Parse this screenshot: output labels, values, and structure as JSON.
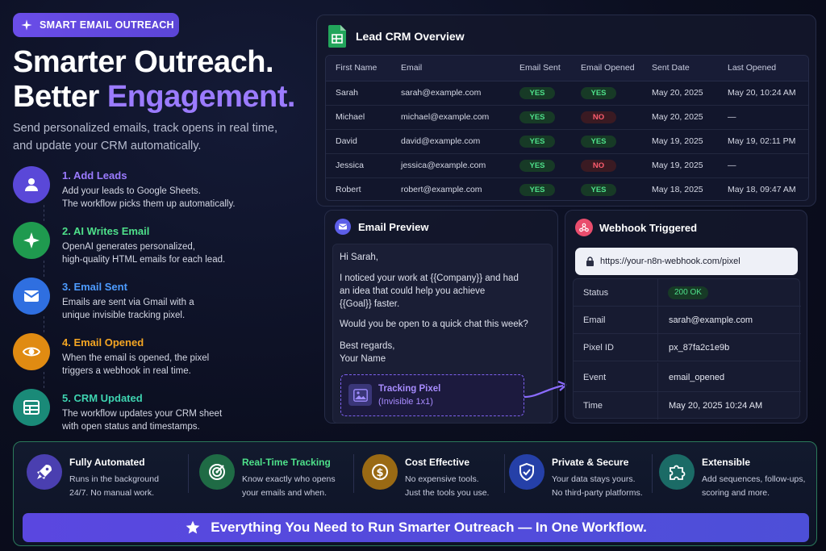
{
  "badge": {
    "label": "SMART EMAIL OUTREACH",
    "icon": "sparkle-icon"
  },
  "hero": {
    "title_line1": "Smarter Outreach.",
    "title_line2_plain": "Better ",
    "title_line2_accent": "Engagement.",
    "subtitle_line1": "Send personalized emails, track opens in real time,",
    "subtitle_line2": "and update your CRM automatically."
  },
  "steps": [
    {
      "title": "1. Add Leads",
      "line1": "Add your leads to Google Sheets.",
      "line2": "The workflow picks them up automatically.",
      "color": "#9b7bff",
      "circle": "#5a48d8",
      "icon": "user-icon"
    },
    {
      "title": "2. AI Writes Email",
      "line1": "OpenAI generates personalized,",
      "line2": "high-quality HTML emails for each lead.",
      "color": "#4ee08a",
      "circle": "#1f9a4f",
      "icon": "sparkle-icon"
    },
    {
      "title": "3. Email Sent",
      "line1": "Emails are sent via Gmail with a",
      "line2": "unique invisible tracking pixel.",
      "color": "#4d9bff",
      "circle": "#2f6fe0",
      "icon": "mail-icon"
    },
    {
      "title": "4. Email Opened",
      "line1": "When the email is opened, the pixel",
      "line2": "triggers a webhook in real time.",
      "color": "#f5a623",
      "circle": "#e08b12",
      "icon": "eye-icon"
    },
    {
      "title": "5. CRM Updated",
      "line1": "The workflow updates your CRM sheet",
      "line2": "with open status and timestamps.",
      "color": "#3ed3b0",
      "circle": "#1a8a78",
      "icon": "sheet-icon"
    }
  ],
  "crm": {
    "title": "Lead CRM Overview",
    "columns": [
      "First Name",
      "Email",
      "Email Sent",
      "Email Opened",
      "Sent Date",
      "Last Opened"
    ],
    "rows": [
      {
        "name": "Sarah",
        "email": "sarah@example.com",
        "sent": "YES",
        "opened": "YES",
        "sent_date": "May 20, 2025",
        "last_opened": "May 20, 10:24 AM"
      },
      {
        "name": "Michael",
        "email": "michael@example.com",
        "sent": "YES",
        "opened": "NO",
        "sent_date": "May 20, 2025",
        "last_opened": "—"
      },
      {
        "name": "David",
        "email": "david@example.com",
        "sent": "YES",
        "opened": "YES",
        "sent_date": "May 19, 2025",
        "last_opened": "May 19, 02:11 PM"
      },
      {
        "name": "Jessica",
        "email": "jessica@example.com",
        "sent": "YES",
        "opened": "NO",
        "sent_date": "May 19, 2025",
        "last_opened": "—"
      },
      {
        "name": "Robert",
        "email": "robert@example.com",
        "sent": "YES",
        "opened": "YES",
        "sent_date": "May 18, 2025",
        "last_opened": "May 18, 09:47 AM"
      }
    ]
  },
  "email_preview": {
    "title": "Email Preview",
    "greeting": "Hi Sarah,",
    "para1_line1": "I noticed your work at {{Company}} and had",
    "para1_line2": "an idea that could help you achieve",
    "para1_line3": "{{Goal}}  faster.",
    "para2": "Would you be open to a quick chat this week?",
    "closing": "Best regards,",
    "signature": "Your Name",
    "pixel_title": "Tracking Pixel",
    "pixel_sub": "(Invisible 1x1)"
  },
  "webhook": {
    "title": "Webhook Triggered",
    "url": "https://your-n8n-webhook.com/pixel",
    "rows": [
      {
        "key": "Status",
        "value": "200 OK"
      },
      {
        "key": "Email",
        "value": "sarah@example.com"
      },
      {
        "key": "Pixel ID",
        "value": "px_87fa2c1e9b"
      },
      {
        "key": "Event",
        "value": "email_opened"
      },
      {
        "key": "Time",
        "value": "May 20, 2025 10:24 AM"
      }
    ]
  },
  "features": [
    {
      "title": "Fully Automated",
      "line1": "Runs in the background",
      "line2": "24/7. No manual work.",
      "color": "#ffffff",
      "circle": "#4a3fb0",
      "icon": "rocket-icon"
    },
    {
      "title": "Real-Time Tracking",
      "line1": "Know exactly who opens",
      "line2": "your emails and when.",
      "color": "#4ee08a",
      "circle": "#1f6b45",
      "icon": "target-icon"
    },
    {
      "title": "Cost Effective",
      "line1": "No expensive tools.",
      "line2": "Just the tools you use.",
      "color": "#ffffff",
      "circle": "#9a6a14",
      "icon": "dollar-icon"
    },
    {
      "title": "Private & Secure",
      "line1": "Your data stays yours.",
      "line2": "No third-party platforms.",
      "color": "#ffffff",
      "circle": "#2540a8",
      "icon": "shield-icon"
    },
    {
      "title": "Extensible",
      "line1": "Add sequences, follow-ups,",
      "line2": "scoring and more.",
      "color": "#ffffff",
      "circle": "#1b6b66",
      "icon": "puzzle-icon"
    }
  ],
  "cta": {
    "label": "Everything You Need to Run Smarter Outreach — In One Workflow.",
    "icon": "star-icon"
  }
}
